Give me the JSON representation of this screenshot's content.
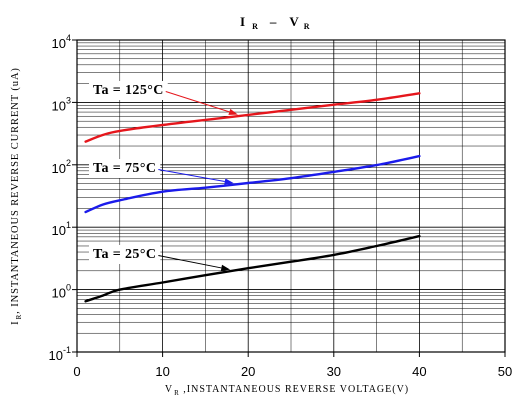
{
  "chart_data": {
    "type": "line",
    "title": {
      "var1": "I",
      "sub1": "R",
      "sep": "–",
      "var2": "V",
      "sub2": "R"
    },
    "xlabel": {
      "var": "V",
      "sub": "R",
      "text": " ,INSTANTANEOUS REVERSE VOLTAGE(V)"
    },
    "ylabel": {
      "var": "I",
      "sub": "R",
      "text": ", INSTANTANEOUS REVERSE CURRENT (uA)"
    },
    "xlim": [
      0,
      50
    ],
    "ylim": [
      0.1,
      10000
    ],
    "yscale": "log",
    "grid": true,
    "xticks": [
      0,
      10,
      20,
      30,
      40,
      50
    ],
    "xtick_labels": [
      "0",
      "10",
      "20",
      "30",
      "40",
      "50"
    ],
    "yticks": [
      0.1,
      1,
      10,
      100,
      1000,
      10000
    ],
    "ytick_labels": [
      {
        "base": "10",
        "exp": "-1"
      },
      {
        "base": "10",
        "exp": "0"
      },
      {
        "base": "10",
        "exp": "1"
      },
      {
        "base": "10",
        "exp": "2"
      },
      {
        "base": "10",
        "exp": "3"
      },
      {
        "base": "10",
        "exp": "4"
      }
    ],
    "series": [
      {
        "name": "Ta = 125°C",
        "color": "#e5161c",
        "x": [
          1,
          3,
          5,
          10,
          15,
          20,
          25,
          30,
          35,
          40
        ],
        "y": [
          235,
          300,
          350,
          435,
          525,
          630,
          760,
          920,
          1100,
          1400
        ]
      },
      {
        "name": "Ta = 75°C",
        "color": "#1b1beb",
        "x": [
          1,
          3,
          5,
          10,
          15,
          20,
          25,
          30,
          35,
          40
        ],
        "y": [
          17.5,
          23,
          27,
          37,
          43,
          51,
          61,
          77,
          99,
          138
        ]
      },
      {
        "name": "Ta = 25°C",
        "color": "#000000",
        "x": [
          1,
          3,
          5,
          10,
          15,
          20,
          25,
          30,
          35,
          40
        ],
        "y": [
          0.65,
          0.8,
          1.0,
          1.3,
          1.7,
          2.2,
          2.8,
          3.6,
          5.0,
          7.2
        ]
      }
    ]
  }
}
